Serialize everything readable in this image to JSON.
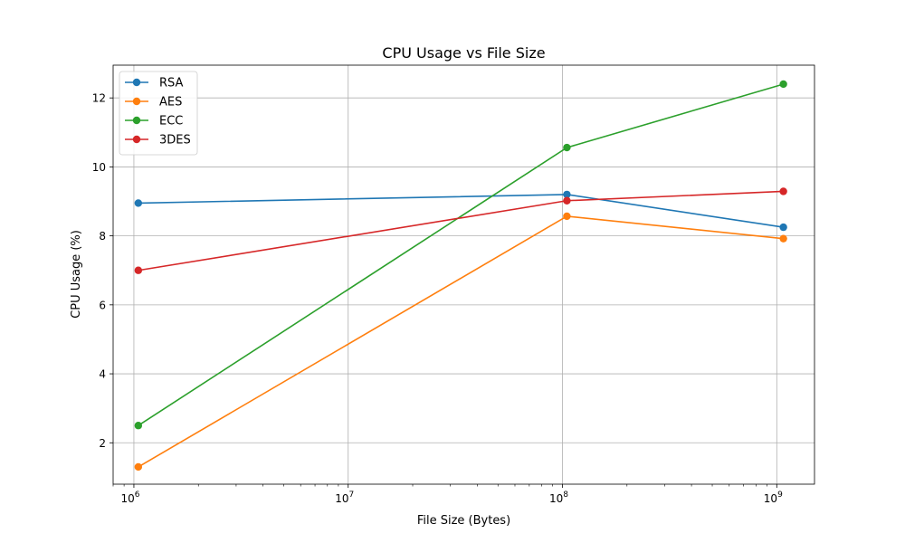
{
  "chart_data": {
    "type": "line",
    "title": "CPU Usage vs File Size",
    "xlabel": "File Size (Bytes)",
    "ylabel": "CPU Usage (%)",
    "xscale": "log",
    "xlim": [
      800000,
      1500000000
    ],
    "ylim": [
      0.8,
      12.95
    ],
    "x": [
      1048576,
      104857600,
      1073741824
    ],
    "xticks": [
      {
        "value": 1000000,
        "base": "10",
        "exp": "6"
      },
      {
        "value": 10000000,
        "base": "10",
        "exp": "7"
      },
      {
        "value": 100000000,
        "base": "10",
        "exp": "8"
      },
      {
        "value": 1000000000,
        "base": "10",
        "exp": "9"
      }
    ],
    "yticks": [
      2,
      4,
      6,
      8,
      10,
      12
    ],
    "grid": true,
    "legend_position": "top-left",
    "series": [
      {
        "name": "RSA",
        "color": "#1f77b4",
        "values": [
          8.95,
          9.2,
          8.25
        ]
      },
      {
        "name": "AES",
        "color": "#ff7f0e",
        "values": [
          1.3,
          8.57,
          7.92
        ]
      },
      {
        "name": "ECC",
        "color": "#2ca02c",
        "values": [
          2.5,
          10.56,
          12.4
        ]
      },
      {
        "name": "3DES",
        "color": "#d62728",
        "values": [
          7.0,
          9.02,
          9.29
        ]
      }
    ]
  }
}
